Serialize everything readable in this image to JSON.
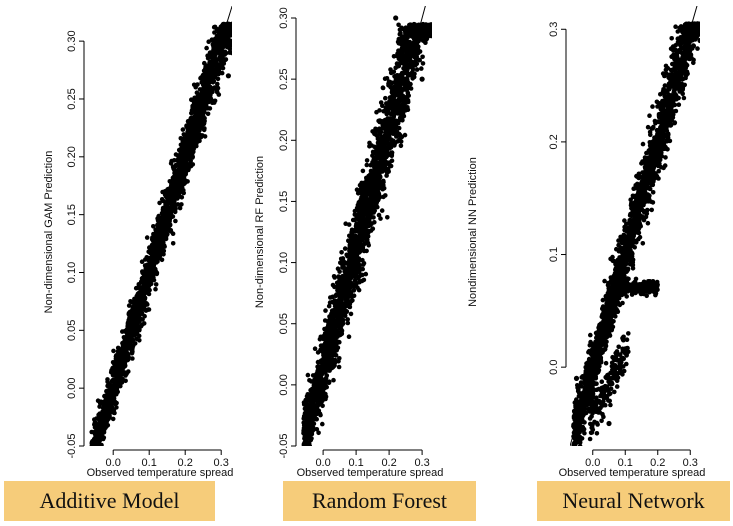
{
  "chart_data": [
    {
      "type": "scatter",
      "title": "",
      "xlabel": "Observed temperature spread",
      "ylabel": "Non-dimensional GAM Prediction",
      "xlim": [
        -0.07,
        0.33
      ],
      "ylim": [
        -0.05,
        0.32
      ],
      "xticks": [
        0.0,
        0.1,
        0.2,
        0.3
      ],
      "xtick_labels": [
        "0.0",
        "0.1",
        "0.2",
        "0.3"
      ],
      "yticks": [
        -0.05,
        0.0,
        0.05,
        0.1,
        0.15,
        0.2,
        0.25,
        0.3
      ],
      "ytick_labels": [
        "-0.05",
        "0.00",
        "0.05",
        "0.10",
        "0.15",
        "0.20",
        "0.25",
        "0.30"
      ],
      "reference_line": "y = x",
      "caption": "Additive Model",
      "samples": [
        [
          -0.05,
          -0.03
        ],
        [
          -0.02,
          -0.01
        ],
        [
          0.0,
          0.0
        ],
        [
          0.02,
          0.03
        ],
        [
          0.05,
          0.05
        ],
        [
          0.07,
          0.07
        ],
        [
          0.1,
          0.1
        ],
        [
          0.12,
          0.12
        ],
        [
          0.15,
          0.15
        ],
        [
          0.18,
          0.18
        ],
        [
          0.2,
          0.21
        ],
        [
          0.22,
          0.23
        ],
        [
          0.25,
          0.25
        ],
        [
          0.28,
          0.27
        ],
        [
          0.3,
          0.3
        ],
        [
          0.32,
          0.27
        ],
        [
          0.33,
          0.29
        ]
      ]
    },
    {
      "type": "scatter",
      "title": "",
      "xlabel": "Observed temperature spread",
      "ylabel": "Non-dimensional RF Prediction",
      "xlim": [
        -0.07,
        0.33
      ],
      "ylim": [
        -0.05,
        0.3
      ],
      "xticks": [
        0.0,
        0.1,
        0.2,
        0.3
      ],
      "xtick_labels": [
        "0.0",
        "0.1",
        "0.2",
        "0.3"
      ],
      "yticks": [
        -0.05,
        0.0,
        0.05,
        0.1,
        0.15,
        0.2,
        0.25,
        0.3
      ],
      "ytick_labels": [
        "-0.05",
        "0.00",
        "0.05",
        "0.10",
        "0.15",
        "0.20",
        "0.25",
        "0.30"
      ],
      "reference_line": "y = x",
      "caption": "Random Forest",
      "samples": [
        [
          -0.05,
          -0.04
        ],
        [
          -0.02,
          -0.01
        ],
        [
          0.0,
          0.02
        ],
        [
          0.03,
          0.05
        ],
        [
          0.05,
          0.06
        ],
        [
          0.08,
          0.09
        ],
        [
          0.1,
          0.11
        ],
        [
          0.12,
          0.13
        ],
        [
          0.15,
          0.15
        ],
        [
          0.18,
          0.18
        ],
        [
          0.2,
          0.21
        ],
        [
          0.22,
          0.24
        ],
        [
          0.25,
          0.25
        ],
        [
          0.27,
          0.26
        ],
        [
          0.3,
          0.25
        ],
        [
          0.22,
          0.3
        ]
      ]
    },
    {
      "type": "scatter",
      "title": "",
      "xlabel": "Observed temperature spread",
      "ylabel": "Nondimensional NN Prediction",
      "xlim": [
        -0.07,
        0.33
      ],
      "ylim": [
        -0.07,
        0.31
      ],
      "xticks": [
        0.0,
        0.1,
        0.2,
        0.3
      ],
      "xtick_labels": [
        "0.0",
        "0.1",
        "0.2",
        "0.3"
      ],
      "yticks": [
        0.0,
        0.1,
        0.2,
        0.3
      ],
      "ytick_labels": [
        "0.0",
        "0.1",
        "0.2",
        "0.3"
      ],
      "reference_line": "y = x",
      "caption": "Neural Network",
      "samples": [
        [
          -0.05,
          -0.01
        ],
        [
          -0.02,
          0.0
        ],
        [
          0.0,
          0.02
        ],
        [
          0.02,
          -0.04
        ],
        [
          0.05,
          -0.05
        ],
        [
          0.05,
          0.07
        ],
        [
          0.1,
          0.1
        ],
        [
          0.12,
          0.07
        ],
        [
          0.15,
          0.14
        ],
        [
          0.18,
          0.17
        ],
        [
          0.2,
          0.2
        ],
        [
          0.22,
          0.22
        ],
        [
          0.25,
          0.25
        ],
        [
          0.3,
          0.29
        ],
        [
          0.33,
          0.29
        ]
      ]
    }
  ]
}
